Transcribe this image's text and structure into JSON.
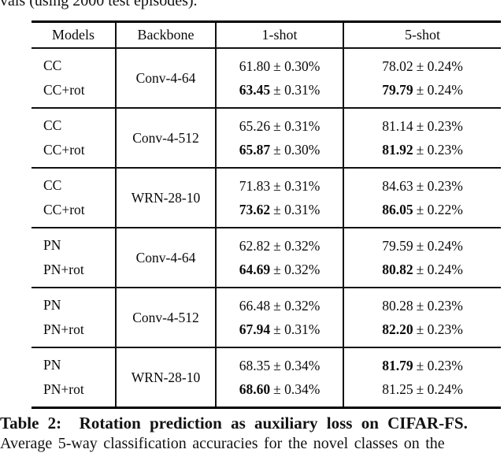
{
  "context": {
    "top_text": "vals (using 2000 test episodes).",
    "caption_line1": "Table 2:  Rotation prediction as auxiliary loss on CIFAR-FS.",
    "caption_line2": "Average 5-way classification accuracies for the novel classes on the"
  },
  "table": {
    "headers": {
      "models": "Models",
      "backbone": "Backbone",
      "one_shot": "1-shot",
      "five_shot": "5-shot"
    },
    "groups": [
      {
        "backbone": "Conv-4-64",
        "rows": [
          {
            "model": "CC",
            "one_shot_val": "61.80",
            "one_shot_pm": "± 0.30%",
            "one_shot_bold": false,
            "five_shot_val": "78.02",
            "five_shot_pm": "± 0.24%",
            "five_shot_bold": false
          },
          {
            "model": "CC+rot",
            "one_shot_val": "63.45",
            "one_shot_pm": "± 0.31%",
            "one_shot_bold": true,
            "five_shot_val": "79.79",
            "five_shot_pm": "± 0.24%",
            "five_shot_bold": true
          }
        ]
      },
      {
        "backbone": "Conv-4-512",
        "rows": [
          {
            "model": "CC",
            "one_shot_val": "65.26",
            "one_shot_pm": "± 0.31%",
            "one_shot_bold": false,
            "five_shot_val": "81.14",
            "five_shot_pm": "± 0.23%",
            "five_shot_bold": false
          },
          {
            "model": "CC+rot",
            "one_shot_val": "65.87",
            "one_shot_pm": "± 0.30%",
            "one_shot_bold": true,
            "five_shot_val": "81.92",
            "five_shot_pm": "± 0.23%",
            "five_shot_bold": true
          }
        ]
      },
      {
        "backbone": "WRN-28-10",
        "rows": [
          {
            "model": "CC",
            "one_shot_val": "71.83",
            "one_shot_pm": "± 0.31%",
            "one_shot_bold": false,
            "five_shot_val": "84.63",
            "five_shot_pm": "± 0.23%",
            "five_shot_bold": false
          },
          {
            "model": "CC+rot",
            "one_shot_val": "73.62",
            "one_shot_pm": "± 0.31%",
            "one_shot_bold": true,
            "five_shot_val": "86.05",
            "five_shot_pm": "± 0.22%",
            "five_shot_bold": true
          }
        ]
      },
      {
        "backbone": "Conv-4-64",
        "rows": [
          {
            "model": "PN",
            "one_shot_val": "62.82",
            "one_shot_pm": "± 0.32%",
            "one_shot_bold": false,
            "five_shot_val": "79.59",
            "five_shot_pm": "± 0.24%",
            "five_shot_bold": false
          },
          {
            "model": "PN+rot",
            "one_shot_val": "64.69",
            "one_shot_pm": "± 0.32%",
            "one_shot_bold": true,
            "five_shot_val": "80.82",
            "five_shot_pm": "± 0.24%",
            "five_shot_bold": true
          }
        ]
      },
      {
        "backbone": "Conv-4-512",
        "rows": [
          {
            "model": "PN",
            "one_shot_val": "66.48",
            "one_shot_pm": "± 0.32%",
            "one_shot_bold": false,
            "five_shot_val": "80.28",
            "five_shot_pm": "± 0.23%",
            "five_shot_bold": false
          },
          {
            "model": "PN+rot",
            "one_shot_val": "67.94",
            "one_shot_pm": "± 0.31%",
            "one_shot_bold": true,
            "five_shot_val": "82.20",
            "five_shot_pm": "± 0.23%",
            "five_shot_bold": true
          }
        ]
      },
      {
        "backbone": "WRN-28-10",
        "rows": [
          {
            "model": "PN",
            "one_shot_val": "68.35",
            "one_shot_pm": "± 0.34%",
            "one_shot_bold": false,
            "five_shot_val": "81.79",
            "five_shot_pm": "± 0.23%",
            "five_shot_bold": true
          },
          {
            "model": "PN+rot",
            "one_shot_val": "68.60",
            "one_shot_pm": "± 0.34%",
            "one_shot_bold": true,
            "five_shot_val": "81.25",
            "five_shot_pm": "± 0.24%",
            "five_shot_bold": false
          }
        ]
      }
    ]
  }
}
